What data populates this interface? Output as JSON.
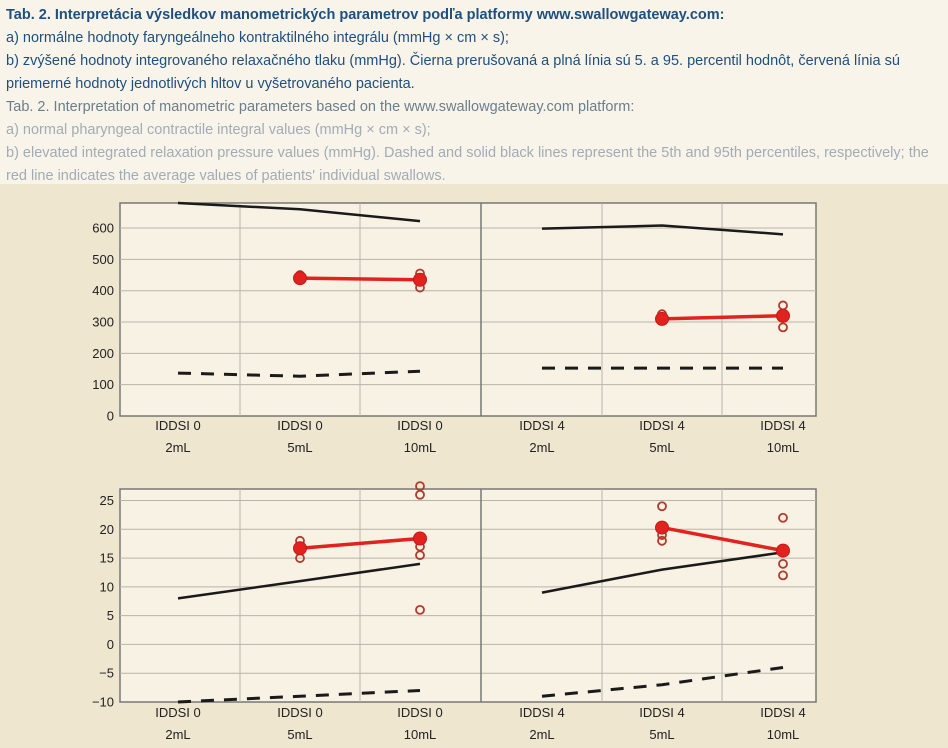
{
  "caption": {
    "sk_title": "Tab. 2. Interpretácia výsledkov manometrických parametrov podľa platformy www.swallowgateway.com:",
    "sk_a": "a) normálne hodnoty faryngeálneho kontraktilného integrálu (mmHg × cm × s);",
    "sk_b1": "b) zvýšené hodnoty integrovaného relaxačného tlaku (mmHg). Čierna prerušovaná a plná línia sú 5. a 95. percentil hodnôt, červená línia sú",
    "sk_b2": "priemerné hodnoty jednotlivých hltov u vyšetrovaného pacienta.",
    "en_title": "Tab. 2. Interpretation of manometric parameters based on the www.swallowgateway.com platform:",
    "en_a": "a) normal pharyngeal contractile integral values (mmHg × cm × s);",
    "en_b1": "b) elevated integrated relaxation pressure values (mmHg). Dashed and solid black lines represent the 5th and 95th percentiles, respectively; the",
    "en_b2": "red line indicates the average values of patients' individual swallows."
  },
  "chart_data": [
    {
      "type": "line",
      "panel": "a",
      "categories": [
        [
          "IDDSI 0",
          "2mL"
        ],
        [
          "IDDSI 0",
          "5mL"
        ],
        [
          "IDDSI 0",
          "10mL"
        ],
        [
          "IDDSI 4",
          "2mL"
        ],
        [
          "IDDSI 4",
          "5mL"
        ],
        [
          "IDDSI 4",
          "10mL"
        ]
      ],
      "groups": [
        [
          0,
          1,
          2
        ],
        [
          3,
          4,
          5
        ]
      ],
      "ylim": [
        0,
        680
      ],
      "yticks": [
        "0",
        "100",
        "200",
        "300",
        "400",
        "500",
        "600"
      ],
      "grid": true,
      "series": [
        {
          "role": "p95",
          "style": "solid",
          "color": "#1a1a1a",
          "values": [
            680,
            660,
            622,
            598,
            608,
            580
          ]
        },
        {
          "role": "p5",
          "style": "dashed",
          "color": "#1a1a1a",
          "values": [
            137,
            127,
            143,
            153,
            153,
            153
          ]
        },
        {
          "role": "mean",
          "style": "solid",
          "color": "#e2221f",
          "values": [
            null,
            440,
            435,
            null,
            310,
            320
          ]
        }
      ],
      "swallows": [
        {
          "index": 1,
          "values": [
            450,
            440,
            435
          ]
        },
        {
          "index": 2,
          "values": [
            455,
            435,
            410
          ]
        },
        {
          "index": 4,
          "values": [
            325,
            315,
            305
          ]
        },
        {
          "index": 5,
          "values": [
            353,
            320,
            283
          ]
        }
      ]
    },
    {
      "type": "line",
      "panel": "b",
      "categories": [
        [
          "IDDSI 0",
          "2mL"
        ],
        [
          "IDDSI 0",
          "5mL"
        ],
        [
          "IDDSI 0",
          "10mL"
        ],
        [
          "IDDSI 4",
          "2mL"
        ],
        [
          "IDDSI 4",
          "5mL"
        ],
        [
          "IDDSI 4",
          "10mL"
        ]
      ],
      "groups": [
        [
          0,
          1,
          2
        ],
        [
          3,
          4,
          5
        ]
      ],
      "ylim": [
        -10,
        27
      ],
      "yticks": [
        "−10",
        "−5",
        "0",
        "5",
        "10",
        "15",
        "20",
        "25"
      ],
      "grid": true,
      "series": [
        {
          "role": "p95",
          "style": "solid",
          "color": "#1a1a1a",
          "values": [
            8,
            11,
            14,
            9,
            13,
            16
          ]
        },
        {
          "role": "p5",
          "style": "dashed",
          "color": "#1a1a1a",
          "values": [
            -10,
            -9,
            -8,
            -9,
            -7,
            -4
          ]
        },
        {
          "role": "mean",
          "style": "solid",
          "color": "#e2221f",
          "values": [
            null,
            16.7,
            18.4,
            null,
            20.3,
            16.3
          ]
        }
      ],
      "swallows": [
        {
          "index": 1,
          "values": [
            18,
            17,
            15
          ]
        },
        {
          "index": 2,
          "values": [
            27.5,
            26,
            17,
            15.5,
            6
          ]
        },
        {
          "index": 4,
          "values": [
            24,
            19,
            18
          ]
        },
        {
          "index": 5,
          "values": [
            22,
            16,
            14,
            12
          ]
        }
      ]
    }
  ]
}
